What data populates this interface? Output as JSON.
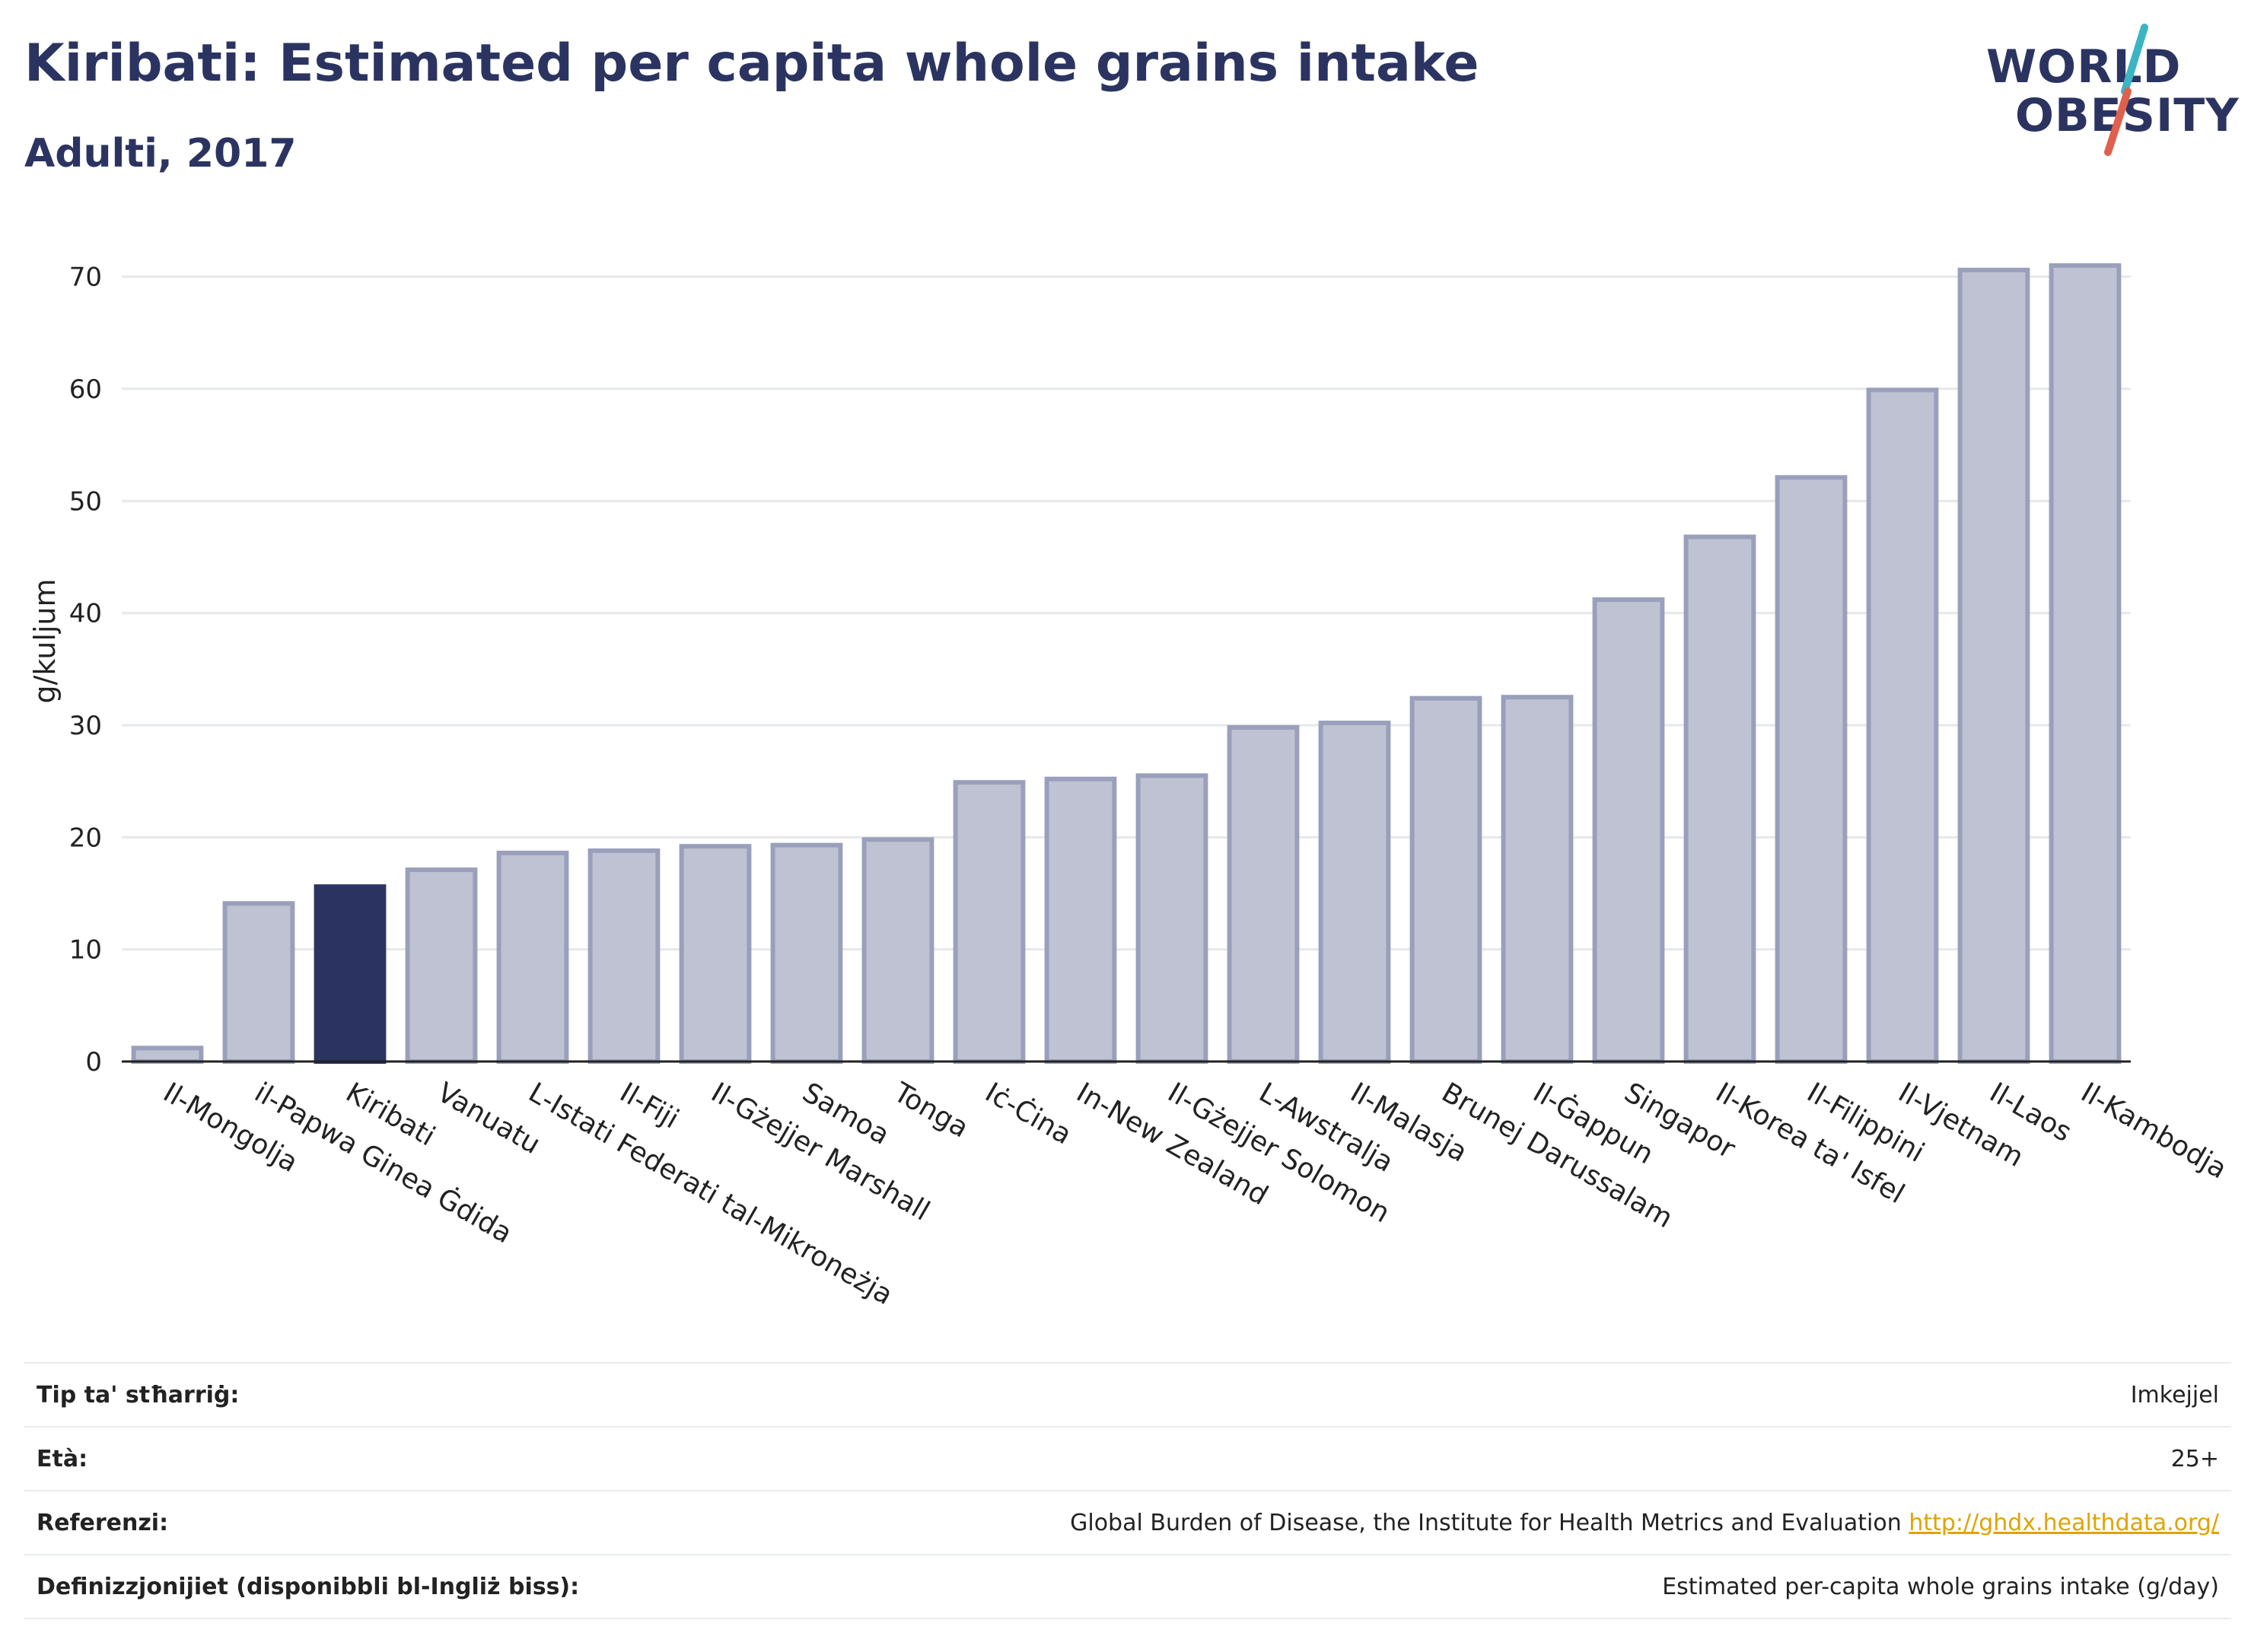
{
  "header": {
    "title": "Kiribati: Estimated per capita whole grains intake",
    "subtitle": "Adulti, 2017"
  },
  "logo": {
    "line1": "WORLD",
    "line2": "OBESITY",
    "accent_teal": "#3bb5c2",
    "accent_red": "#e0604e"
  },
  "colors": {
    "bar": "#bfc2d2",
    "bar_stroke": "#9aa0bb",
    "highlight": "#2b3461",
    "grid": "#e6e8ec",
    "text": "#2b3461"
  },
  "chart_data": {
    "type": "bar",
    "title": "Kiribati: Estimated per capita whole grains intake",
    "subtitle": "Adulti, 2017",
    "ylabel": "g/kuljum",
    "xlabel": "",
    "ylim": [
      0,
      75
    ],
    "yticks": [
      0,
      10,
      20,
      30,
      40,
      50,
      60,
      70
    ],
    "grid": true,
    "highlight": "Kiribati",
    "categories": [
      "Il-Mongolja",
      "il-Papwa Ginea Ġdida",
      "Kiribati",
      "Vanuatu",
      "L-Istati Federati tal-Mikroneżja",
      "Il-Fiji",
      "Il-Gżejjer Marshall",
      "Samoa",
      "Tonga",
      "Iċ-Ċina",
      "In-New Zealand",
      "Il-Gżejjer Solomon",
      "L-Awstralja",
      "Il-Malasja",
      "Brunej Darussalam",
      "Il-Ġappun",
      "Singapor",
      "Il-Korea ta' Isfel",
      "Il-Filippini",
      "Il-Vjetnam",
      "Il-Laos",
      "Il-Kambodja"
    ],
    "values": [
      1.2,
      14.1,
      15.6,
      17.1,
      18.6,
      18.8,
      19.2,
      19.3,
      19.8,
      24.9,
      25.2,
      25.5,
      29.8,
      30.2,
      32.4,
      32.5,
      41.2,
      46.8,
      52.1,
      59.9,
      70.6,
      71.0
    ]
  },
  "info_table": [
    {
      "key": "Tip ta' stħarriġ:",
      "value": "Imkejjel",
      "link": ""
    },
    {
      "key": "Età:",
      "value": "25+",
      "link": ""
    },
    {
      "key": "Referenzi:",
      "value": "Global Burden of Disease, the Institute for Health Metrics and Evaluation",
      "link": "http://ghdx.healthdata.org/"
    },
    {
      "key": "Definizzjonijiet (disponibbli bl-Ingliż biss):",
      "value": "Estimated per-capita whole grains intake (g/day)",
      "link": ""
    }
  ]
}
